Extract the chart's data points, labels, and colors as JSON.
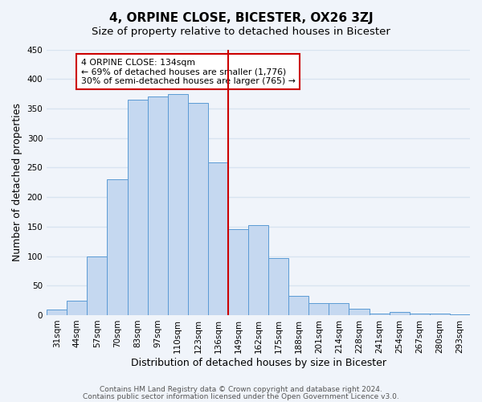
{
  "title": "4, ORPINE CLOSE, BICESTER, OX26 3ZJ",
  "subtitle": "Size of property relative to detached houses in Bicester",
  "xlabel": "Distribution of detached houses by size in Bicester",
  "ylabel": "Number of detached properties",
  "bin_labels": [
    "31sqm",
    "44sqm",
    "57sqm",
    "70sqm",
    "83sqm",
    "97sqm",
    "110sqm",
    "123sqm",
    "136sqm",
    "149sqm",
    "162sqm",
    "175sqm",
    "188sqm",
    "201sqm",
    "214sqm",
    "228sqm",
    "241sqm",
    "254sqm",
    "267sqm",
    "280sqm",
    "293sqm"
  ],
  "bin_values": [
    10,
    25,
    100,
    230,
    365,
    370,
    375,
    360,
    258,
    145,
    153,
    97,
    33,
    21,
    21,
    11,
    3,
    5,
    2,
    2,
    1
  ],
  "bar_color": "#c5d8f0",
  "bar_edge_color": "#5b9bd5",
  "vline_x_index": 8,
  "vline_color": "#cc0000",
  "annotation_text": "4 ORPINE CLOSE: 134sqm\n← 69% of detached houses are smaller (1,776)\n30% of semi-detached houses are larger (765) →",
  "annotation_box_color": "#ffffff",
  "annotation_box_edge_color": "#cc0000",
  "ylim": [
    0,
    450
  ],
  "yticks": [
    0,
    50,
    100,
    150,
    200,
    250,
    300,
    350,
    400,
    450
  ],
  "footer_line1": "Contains HM Land Registry data © Crown copyright and database right 2024.",
  "footer_line2": "Contains public sector information licensed under the Open Government Licence v3.0.",
  "bg_color": "#f0f4fa",
  "grid_color": "#d8e4f0",
  "title_fontsize": 11,
  "subtitle_fontsize": 9.5,
  "axis_label_fontsize": 9,
  "tick_fontsize": 7.5,
  "footer_fontsize": 6.5
}
